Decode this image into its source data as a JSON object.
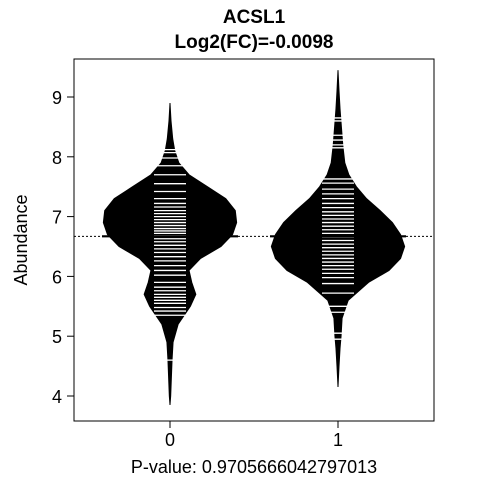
{
  "chart_data": {
    "type": "beanplot",
    "title": "ACSL1",
    "subtitle": "Log2(FC)=-0.0098",
    "xlabel": "P-value: 0.9705666042797013",
    "ylabel": "Abundance",
    "categories": [
      "0",
      "1"
    ],
    "y_ticks": [
      4,
      5,
      6,
      7,
      8,
      9
    ],
    "ylim": [
      3.75,
      9.6
    ],
    "overall_mean": 6.67,
    "group_means": [
      6.67,
      6.67
    ],
    "density_profiles": [
      {
        "group": "0",
        "points": [
          [
            3.85,
            0.0
          ],
          [
            4.0,
            0.01
          ],
          [
            4.3,
            0.02
          ],
          [
            4.6,
            0.03
          ],
          [
            4.9,
            0.045
          ],
          [
            5.2,
            0.12
          ],
          [
            5.5,
            0.3
          ],
          [
            5.7,
            0.38
          ],
          [
            5.9,
            0.32
          ],
          [
            6.1,
            0.28
          ],
          [
            6.3,
            0.45
          ],
          [
            6.5,
            0.75
          ],
          [
            6.7,
            0.92
          ],
          [
            6.9,
            0.98
          ],
          [
            7.1,
            0.96
          ],
          [
            7.3,
            0.82
          ],
          [
            7.5,
            0.55
          ],
          [
            7.7,
            0.28
          ],
          [
            7.9,
            0.13
          ],
          [
            8.1,
            0.07
          ],
          [
            8.3,
            0.04
          ],
          [
            8.6,
            0.015
          ],
          [
            8.9,
            0.0
          ]
        ],
        "observations": [
          4.6,
          5.35,
          5.42,
          5.48,
          5.55,
          5.6,
          5.65,
          5.7,
          5.76,
          5.82,
          5.9,
          6.02,
          6.1,
          6.18,
          6.26,
          6.33,
          6.4,
          6.46,
          6.52,
          6.58,
          6.63,
          6.68,
          6.72,
          6.76,
          6.8,
          6.85,
          6.9,
          6.95,
          7.0,
          7.05,
          7.1,
          7.16,
          7.22,
          7.3,
          7.42,
          7.55,
          7.7,
          7.85,
          7.98,
          8.07,
          8.12
        ]
      },
      {
        "group": "1",
        "points": [
          [
            4.15,
            0.0
          ],
          [
            4.5,
            0.015
          ],
          [
            4.8,
            0.03
          ],
          [
            5.0,
            0.045
          ],
          [
            5.3,
            0.06
          ],
          [
            5.6,
            0.15
          ],
          [
            5.9,
            0.45
          ],
          [
            6.1,
            0.75
          ],
          [
            6.3,
            0.92
          ],
          [
            6.5,
            0.98
          ],
          [
            6.7,
            0.92
          ],
          [
            6.9,
            0.8
          ],
          [
            7.1,
            0.62
          ],
          [
            7.3,
            0.42
          ],
          [
            7.5,
            0.27
          ],
          [
            7.7,
            0.16
          ],
          [
            7.9,
            0.1
          ],
          [
            8.2,
            0.07
          ],
          [
            8.5,
            0.05
          ],
          [
            8.8,
            0.03
          ],
          [
            9.1,
            0.015
          ],
          [
            9.45,
            0.0
          ]
        ],
        "observations": [
          4.95,
          5.05,
          5.4,
          5.5,
          5.72,
          5.88,
          5.98,
          6.05,
          6.12,
          6.18,
          6.24,
          6.3,
          6.36,
          6.42,
          6.48,
          6.54,
          6.6,
          6.66,
          6.72,
          6.78,
          6.84,
          6.9,
          6.96,
          7.02,
          7.08,
          7.15,
          7.22,
          7.3,
          7.38,
          7.46,
          7.56,
          7.63,
          8.15,
          8.2,
          8.28,
          8.36,
          8.6,
          8.65
        ]
      }
    ],
    "colors": {
      "bean": "#000000",
      "observation_line": "#ffffff",
      "mean_line": "#000000",
      "axis": "#000000",
      "background": "#ffffff"
    }
  }
}
